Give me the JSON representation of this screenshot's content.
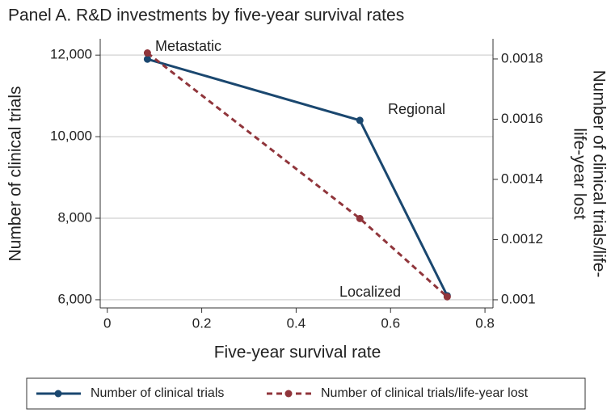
{
  "chart_data": {
    "type": "line",
    "title": "Panel A. R&D investments by five-year survival rates",
    "xlabel": "Five-year survival rate",
    "ylabel": "Number of clinical trials",
    "y2label": [
      "Number of clinical trials/life-",
      "life-year lost"
    ],
    "annotations": [
      "Metastatic",
      "Regional",
      "Localized"
    ],
    "x": [
      0.085,
      0.535,
      0.72
    ],
    "series": [
      {
        "name": "Number of clinical trials",
        "color": "#1a476f",
        "dash": false,
        "values": [
          11900,
          10400,
          6100
        ]
      },
      {
        "name": "Number of clinical trials/life-year lost",
        "color": "#90353b",
        "dash": true,
        "axis": "y2",
        "values": [
          0.00182,
          0.00127,
          0.00101
        ]
      }
    ],
    "xlim": [
      -0.015,
      0.817
    ],
    "xticks": [
      0,
      0.2,
      0.4,
      0.6,
      0.8
    ],
    "ylim": [
      5800,
      12400
    ],
    "yticks": [
      {
        "value": 6000,
        "label": "6,000"
      },
      {
        "value": 8000,
        "label": "8,000"
      },
      {
        "value": 10000,
        "label": "10,000"
      },
      {
        "value": 12000,
        "label": "12,000"
      }
    ],
    "y2lim": [
      0.000973,
      0.001867
    ],
    "y2ticks": [
      0.001,
      0.0012,
      0.0014,
      0.0016,
      0.0018
    ],
    "grid": true
  }
}
